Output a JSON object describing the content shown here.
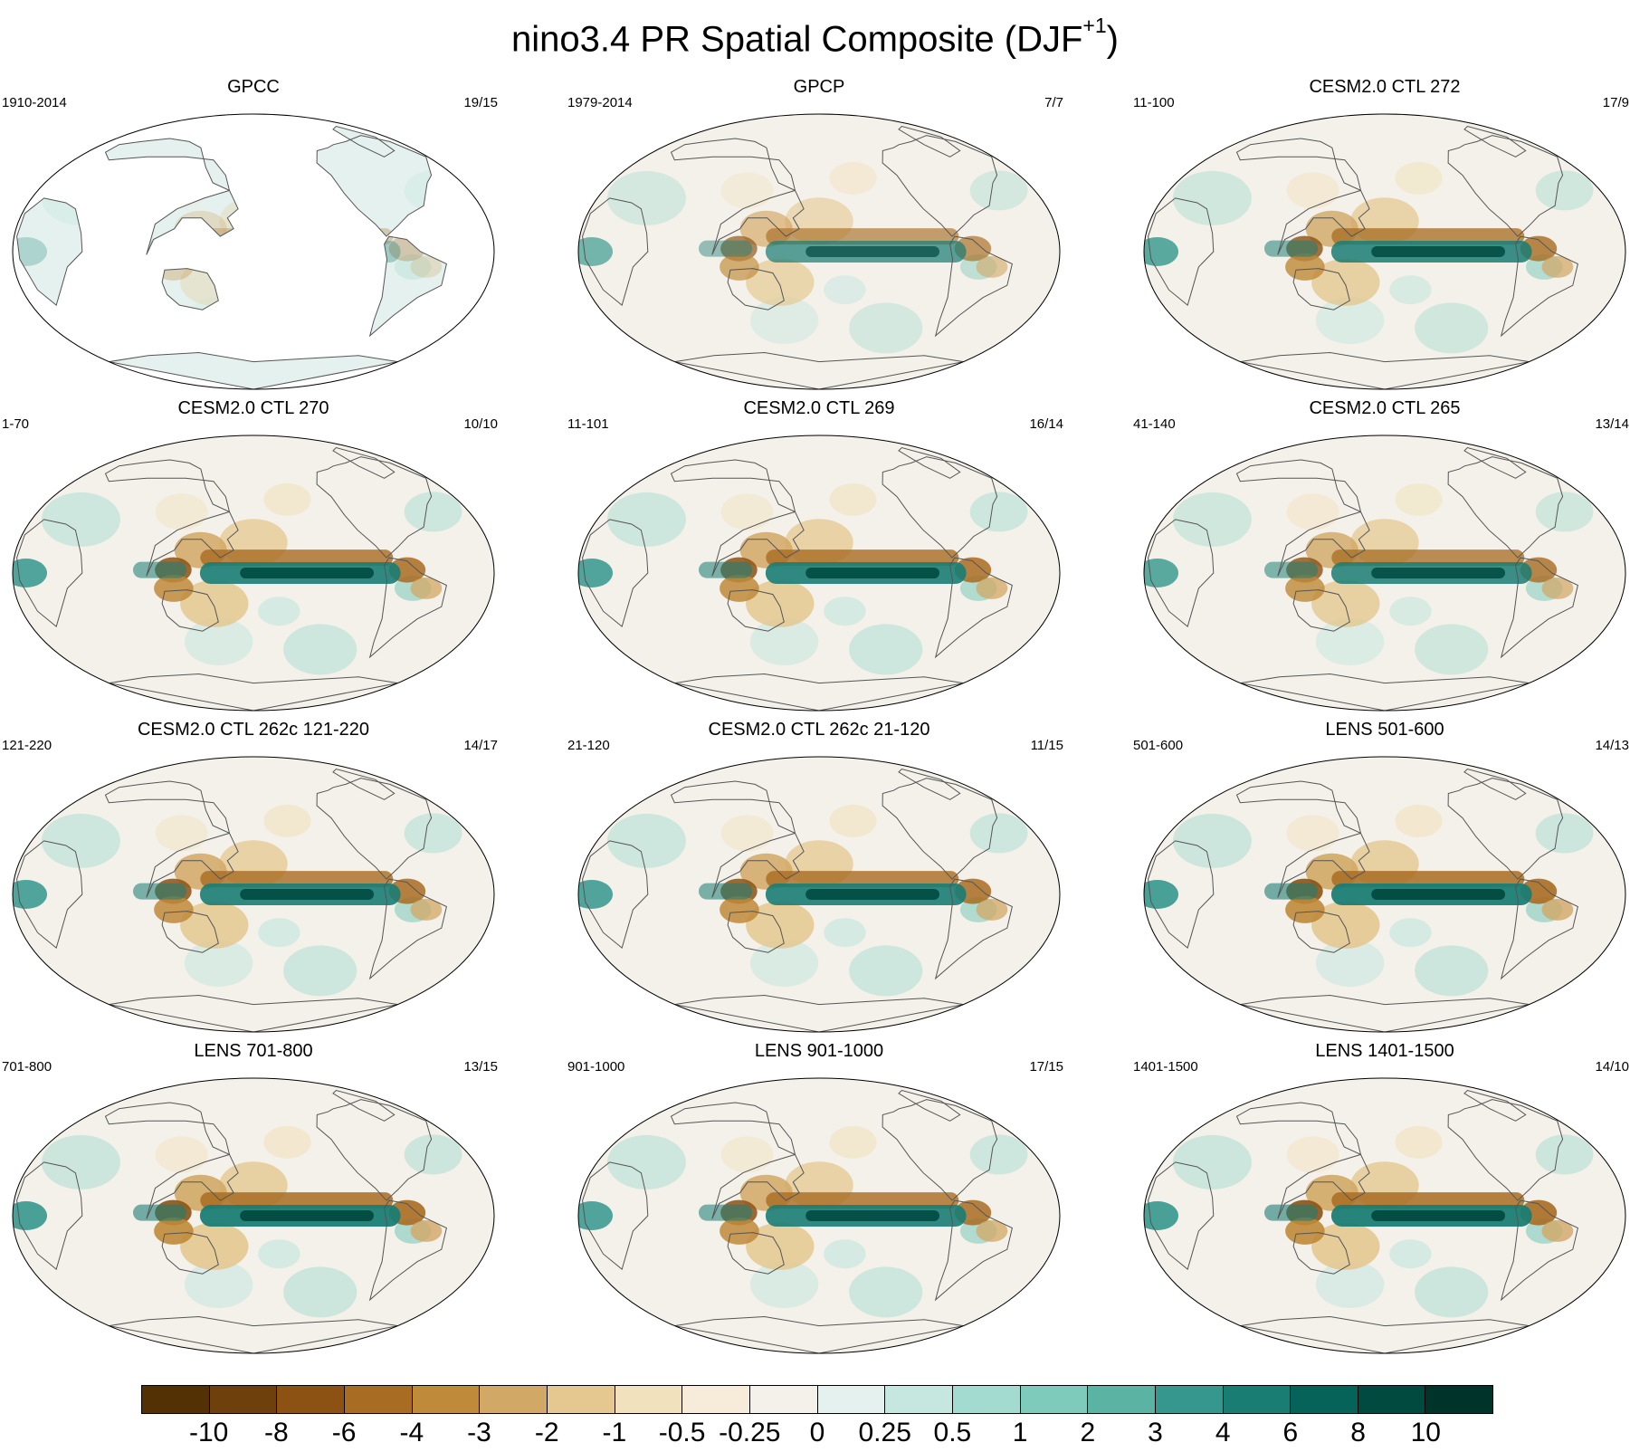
{
  "title": {
    "main": "nino3.4 PR Spatial Composite (DJF",
    "superscript": "+1",
    "close": ")"
  },
  "panels": [
    {
      "name": "GPCC",
      "years": "1910-2014",
      "counts": "19/15",
      "coverage": "land-only",
      "intensity": 0.35
    },
    {
      "name": "GPCP",
      "years": "1979-2014",
      "counts": "7/7",
      "coverage": "global",
      "intensity": 0.75
    },
    {
      "name": "CESM2.0 CTL 272",
      "years": "11-100",
      "counts": "17/9",
      "coverage": "global",
      "intensity": 0.9
    },
    {
      "name": "CESM2.0 CTL 270",
      "years": "1-70",
      "counts": "10/10",
      "coverage": "global",
      "intensity": 0.95
    },
    {
      "name": "CESM2.0 CTL 269",
      "years": "11-101",
      "counts": "16/14",
      "coverage": "global",
      "intensity": 0.95
    },
    {
      "name": "CESM2.0 CTL 265",
      "years": "41-140",
      "counts": "13/14",
      "coverage": "global",
      "intensity": 0.9
    },
    {
      "name": "CESM2.0 CTL 262c 121-220",
      "years": "121-220",
      "counts": "14/17",
      "coverage": "global",
      "intensity": 0.95
    },
    {
      "name": "CESM2.0 CTL 262c 21-120",
      "years": "21-120",
      "counts": "11/15",
      "coverage": "global",
      "intensity": 0.95
    },
    {
      "name": "LENS 501-600",
      "years": "501-600",
      "counts": "14/13",
      "coverage": "global",
      "intensity": 1.0
    },
    {
      "name": "LENS 701-800",
      "years": "701-800",
      "counts": "13/15",
      "coverage": "global",
      "intensity": 1.0
    },
    {
      "name": "LENS 901-1000",
      "years": "901-1000",
      "counts": "17/15",
      "coverage": "global",
      "intensity": 0.95
    },
    {
      "name": "LENS 1401-1500",
      "years": "1401-1500",
      "counts": "14/10",
      "coverage": "global",
      "intensity": 1.0
    }
  ],
  "colorbar": {
    "colors": [
      "#543005",
      "#6e400c",
      "#8c5214",
      "#a86c22",
      "#bf8a3a",
      "#d2a866",
      "#e4c890",
      "#f1e1bd",
      "#f6ecd9",
      "#f4f1ea",
      "#e5f1ee",
      "#c6e7e0",
      "#a3dbd0",
      "#7ecabb",
      "#5bb3a4",
      "#35978d",
      "#1a7d74",
      "#066359",
      "#014a40",
      "#003329"
    ],
    "labels": [
      "-10",
      "-8",
      "-6",
      "-4",
      "-3",
      "-2",
      "-1",
      "-0.5",
      "-0.25",
      "0",
      "0.25",
      "0.5",
      "1",
      "2",
      "3",
      "4",
      "6",
      "8",
      "10"
    ]
  }
}
